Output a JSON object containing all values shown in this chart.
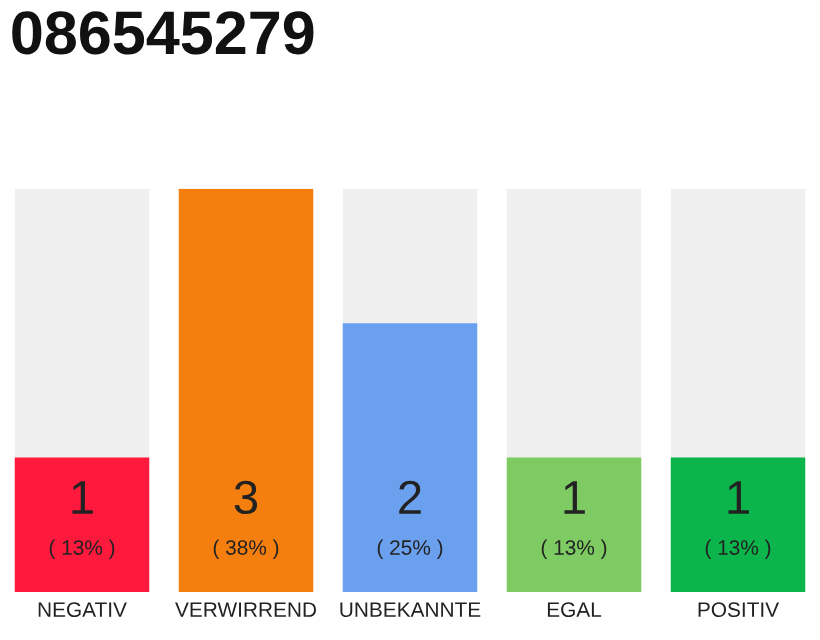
{
  "chart_data": {
    "type": "bar",
    "title": "086545279",
    "categories": [
      "NEGATIV",
      "VERWIRREND",
      "UNBEKANNTE",
      "EGAL",
      "POSITIV"
    ],
    "values": [
      1,
      3,
      2,
      1,
      1
    ],
    "colors": [
      "#ff1a3d",
      "#f47f0e",
      "#6aa0ee",
      "#7dcb62",
      "#0bb54b"
    ],
    "value_labels": [
      "1\n( 13% )",
      "3\n( 38% )",
      "2\n( 25% )",
      "1\n( 13% )",
      "1\n( 13% )"
    ],
    "ylim": [
      0,
      3
    ],
    "tick_labels": "x",
    "grid": false,
    "legend": false
  }
}
